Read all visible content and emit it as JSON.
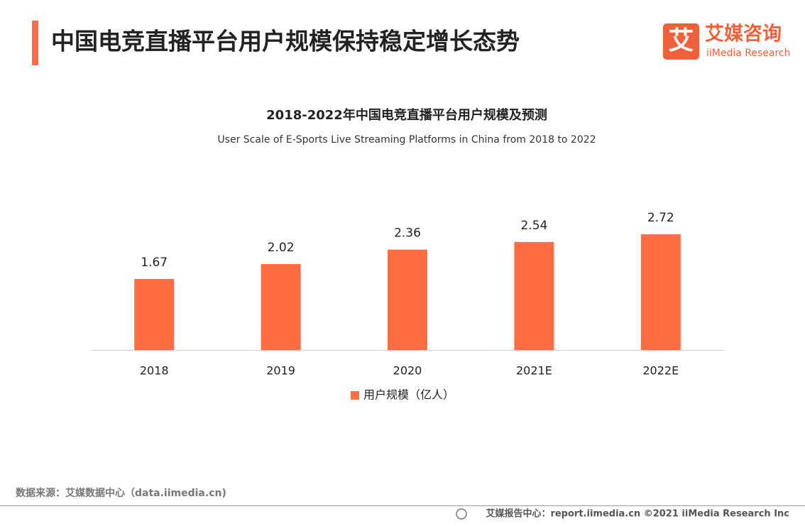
{
  "header": {
    "title": "中国电竞直播平台用户规模保持稳定增长态势",
    "logo_icon": "艾",
    "logo_cn": "艾媒咨询",
    "logo_en": "iiMedia Research"
  },
  "chart_data": {
    "type": "bar",
    "title": "2018-2022年中国电竞直播平台用户规模及预测",
    "subtitle": "User Scale of E-Sports Live Streaming Platforms in China from 2018 to 2022",
    "categories": [
      "2018",
      "2019",
      "2020",
      "2021E",
      "2022E"
    ],
    "series": [
      {
        "name": "用户规模（亿人）",
        "color": "#ff6d42",
        "values": [
          1.67,
          2.02,
          2.36,
          2.54,
          2.72
        ]
      }
    ],
    "legend": "bottom"
  },
  "footer": {
    "source": "数据来源：艾媒数据中心（data.iimedia.cn)",
    "credit": "艾媒报告中心：report.iimedia.cn ©2021  iiMedia Research  Inc"
  }
}
